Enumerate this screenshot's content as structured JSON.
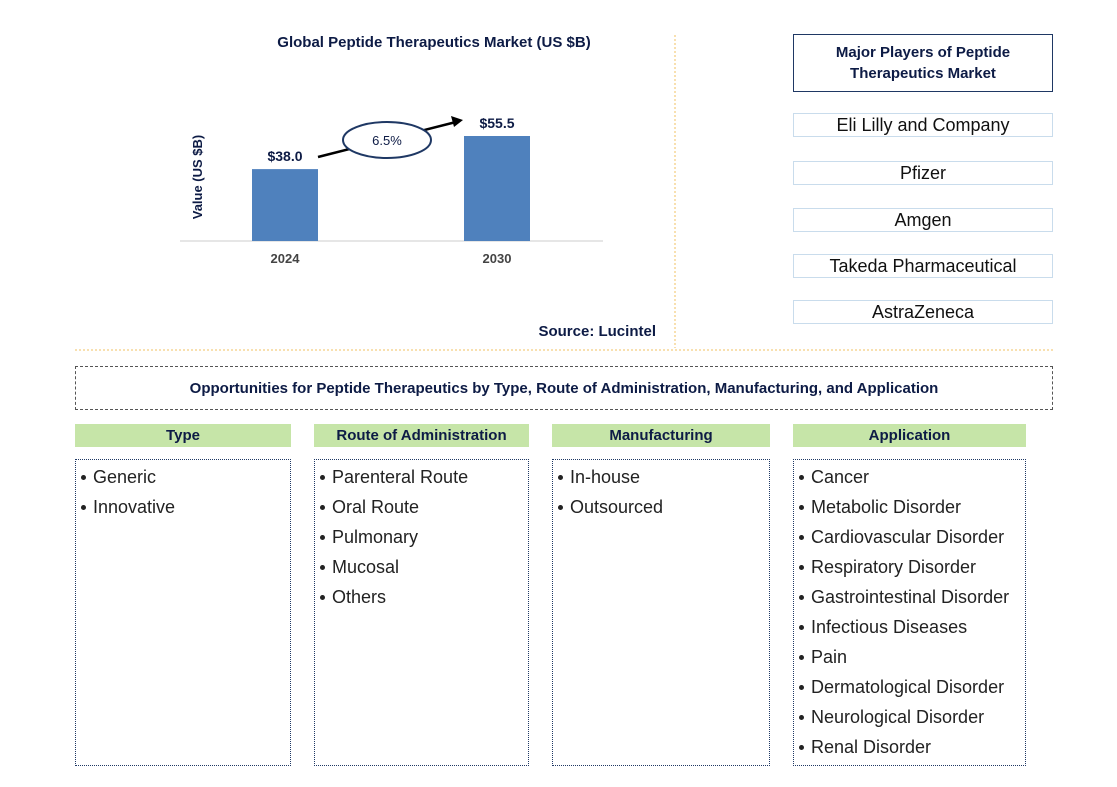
{
  "chart_data": {
    "type": "bar",
    "title": "Global Peptide Therapeutics Market (US $B)",
    "y_label": "Value (US $B)",
    "categories": [
      "2024",
      "2030"
    ],
    "values": [
      38.0,
      55.5
    ],
    "value_labels": [
      "$38.0",
      "$55.5"
    ],
    "color": "#4f81bd",
    "growth_label": "6.5%",
    "source": "Source: Lucintel"
  },
  "players": {
    "title": "Major Players of Peptide Therapeutics Market",
    "items": [
      "Eli Lilly and Company",
      "Pfizer",
      "Amgen",
      "Takeda Pharmaceutical",
      "AstraZeneca"
    ]
  },
  "opportunities": {
    "title": "Opportunities for Peptide Therapeutics by Type, Route of Administration, Manufacturing, and Application",
    "columns": [
      {
        "header": "Type",
        "items": [
          "Generic",
          "Innovative"
        ]
      },
      {
        "header": "Route of Administration",
        "items": [
          "Parenteral Route",
          "Oral Route",
          "Pulmonary",
          "Mucosal",
          "Others"
        ]
      },
      {
        "header": "Manufacturing",
        "items": [
          "In-house",
          "Outsourced"
        ]
      },
      {
        "header": "Application",
        "items": [
          "Cancer",
          "Metabolic Disorder",
          "Cardiovascular Disorder",
          "Respiratory Disorder",
          "Gastrointestinal Disorder",
          "Infectious Diseases",
          "Pain",
          "Dermatological Disorder",
          "Neurological Disorder",
          "Renal Disorder"
        ]
      }
    ]
  }
}
